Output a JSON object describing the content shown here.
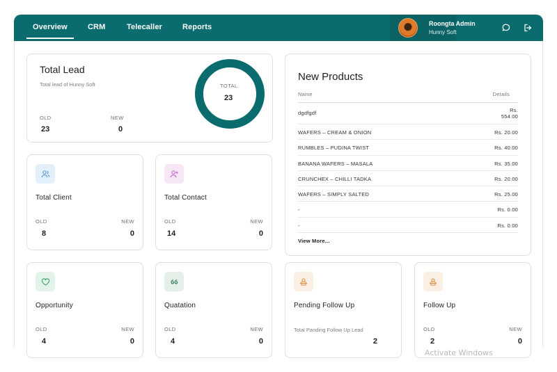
{
  "nav": {
    "tabs": [
      {
        "label": "Overview",
        "active": true
      },
      {
        "label": "CRM",
        "active": false
      },
      {
        "label": "Telecaller",
        "active": false
      },
      {
        "label": "Reports",
        "active": false
      }
    ]
  },
  "user": {
    "name": "Roongta Admin",
    "company": "Hunny Soft"
  },
  "icons": {
    "chat": "chat-icon",
    "logout": "logout-icon"
  },
  "total_lead": {
    "title": "Total Lead",
    "subtitle": "Total lead of Hunny Soft",
    "old_label": "OLD",
    "old_value": "23",
    "new_label": "NEW",
    "new_value": "0",
    "donut_label": "TOTAL",
    "donut_value": "23"
  },
  "cards": {
    "total_client": {
      "title": "Total Client",
      "old_label": "OLD",
      "old_value": "8",
      "new_label": "NEW",
      "new_value": "0"
    },
    "total_contact": {
      "title": "Total Contact",
      "old_label": "OLD",
      "old_value": "14",
      "new_label": "NEW",
      "new_value": "0"
    },
    "opportunity": {
      "title": "Opportunity",
      "old_label": "OLD",
      "old_value": "4",
      "new_label": "NEW",
      "new_value": "0"
    },
    "quotation": {
      "title": "Quatation",
      "old_label": "OLD",
      "old_value": "4",
      "new_label": "NEW",
      "new_value": "0"
    },
    "pending_follow_up": {
      "title": "Pending Follow Up",
      "subtitle": "Total Panding Follow Up Lead",
      "value": "2"
    },
    "follow_up": {
      "title": "Follow Up",
      "old_label": "OLD",
      "old_value": "2",
      "new_label": "NEW",
      "new_value": "0"
    }
  },
  "new_products": {
    "title": "New Products",
    "col_name": "Name",
    "col_details": "Details",
    "rows": [
      {
        "name": "dgdfgdf",
        "details_line1": "Rs.",
        "details_line2": "554.00"
      },
      {
        "name": "WAFERS – CREAM & ONION",
        "details": "Rs. 20.00"
      },
      {
        "name": "RUMBLES – PUDINA TWIST",
        "details": "Rs. 40.00"
      },
      {
        "name": "BANANA WAFERS – MASALA",
        "details": "Rs. 35.00"
      },
      {
        "name": "CRUNCHEX – CHILLI TADKA",
        "details": "Rs. 20.00"
      },
      {
        "name": "WAFERS – SIMPLY SALTED",
        "details": "Rs. 25.00"
      },
      {
        "name": "-",
        "details": "Rs. 0.00"
      },
      {
        "name": "-",
        "details": "Rs. 0.00"
      }
    ],
    "view_more": "View More..."
  },
  "colors": {
    "brand": "#0b6c6f",
    "client_icon_bg": "#e3f0fb",
    "contact_icon_bg": "#f6e6f6",
    "opportunity_icon_bg": "#e2f4ea",
    "quotation_icon_bg": "#e4efe8",
    "followup_icon_bg": "#fbeee2"
  },
  "watermark": "Activate Windows"
}
